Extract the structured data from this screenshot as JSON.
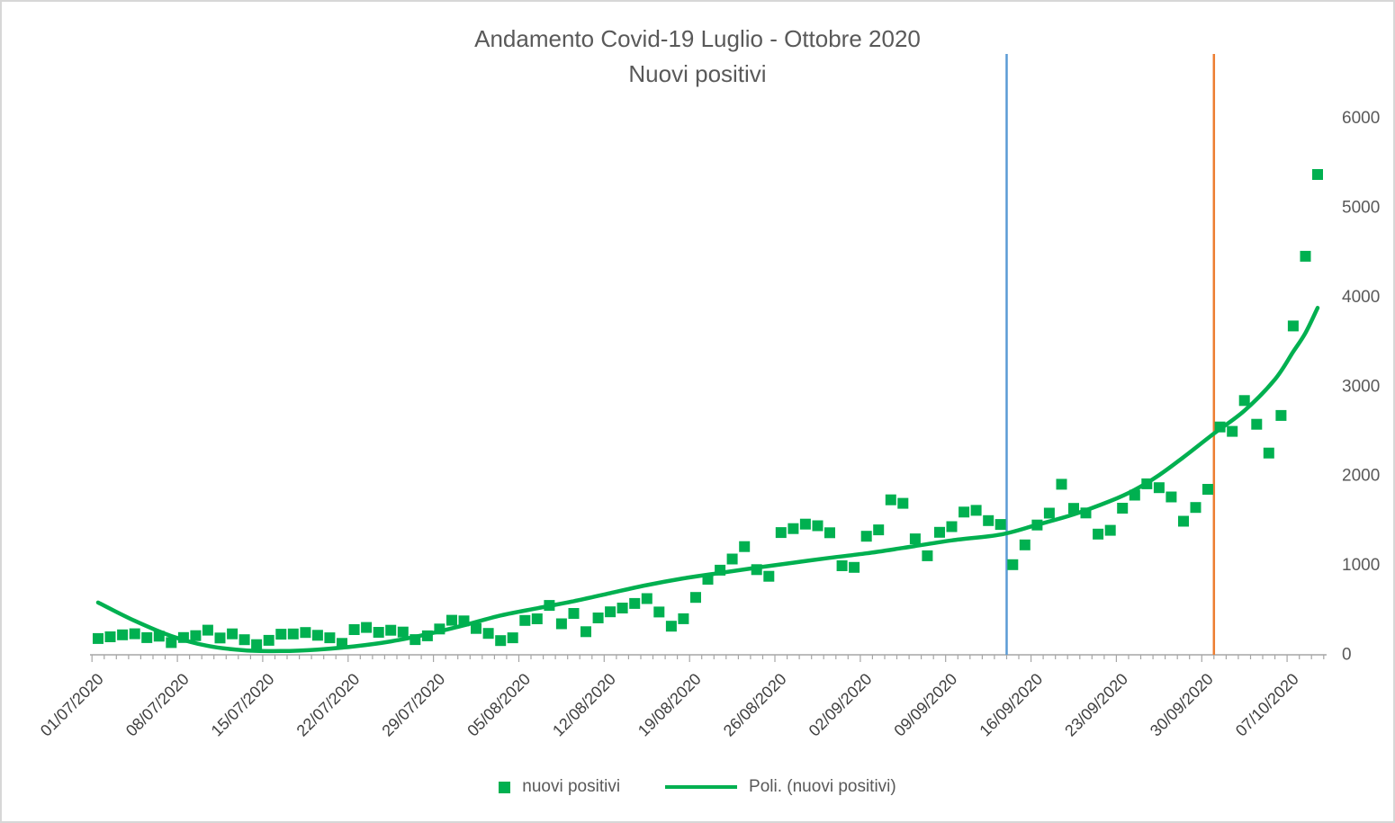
{
  "title": {
    "line1": "Andamento Covid-19 Luglio - Ottobre 2020",
    "line2": "Nuovi positivi"
  },
  "colors": {
    "series": "#00B050",
    "trend": "#00B050",
    "axis": "#A6A6A6",
    "y_label_text": "#595959",
    "x_label_text": "#404040",
    "title_text": "#595959",
    "legend_text": "#595959",
    "vline_blue": "#5B9BD5",
    "vline_orange": "#ED7D31"
  },
  "legend": {
    "items": [
      {
        "label": "nuovi positivi",
        "swatch": "square"
      },
      {
        "label": "Poli. (nuovi positivi)",
        "swatch": "line"
      }
    ]
  },
  "y_axis": {
    "side": "right",
    "ticks": [
      0,
      1000,
      2000,
      3000,
      4000,
      5000,
      6000
    ]
  },
  "x_axis": {
    "label_rotation_deg": -45,
    "tick_labels": [
      "01/07/2020",
      "08/07/2020",
      "15/07/2020",
      "22/07/2020",
      "29/07/2020",
      "05/08/2020",
      "12/08/2020",
      "19/08/2020",
      "26/08/2020",
      "02/09/2020",
      "09/09/2020",
      "16/09/2020",
      "23/09/2020",
      "30/09/2020",
      "07/10/2020"
    ]
  },
  "chart_data": {
    "type": "scatter",
    "title": "Andamento Covid-19 Luglio - Ottobre 2020 — Nuovi positivi",
    "xlabel": "",
    "ylabel": "",
    "ylim": [
      0,
      6000
    ],
    "grid": false,
    "legend_position": "bottom",
    "x_start_date": "01/07/2020",
    "x_end_date": "09/10/2020",
    "x_frequency": "daily",
    "series": [
      {
        "name": "nuovi positivi",
        "marker": "square",
        "values": [
          182,
          201,
          223,
          235,
          192,
          208,
          137,
          193,
          214,
          276,
          188,
          234,
          169,
          114,
          162,
          230,
          233,
          249,
          218,
          190,
          128,
          282,
          306,
          252,
          275,
          255,
          170,
          212,
          289,
          386,
          379,
          295,
          239,
          159,
          190,
          384,
          402,
          552,
          347,
          463,
          259,
          412,
          481,
          523,
          574,
          629,
          479,
          320,
          403,
          642,
          845,
          947,
          1071,
          1210,
          953,
          878,
          1367,
          1411,
          1462,
          1444,
          1365,
          996,
          978,
          1326,
          1397,
          1733,
          1694,
          1297,
          1108,
          1370,
          1434,
          1597,
          1616,
          1501,
          1458,
          1008,
          1229,
          1452,
          1585,
          1907,
          1638,
          1587,
          1350,
          1392,
          1640,
          1786,
          1912,
          1869,
          1766,
          1494,
          1648,
          1851,
          2548,
          2499,
          2844,
          2578,
          2257,
          2677,
          3678,
          4458,
          5372
        ]
      }
    ],
    "trendline": {
      "name": "Poli. (nuovi positivi)",
      "type": "polynomial",
      "samples_day_value": [
        [
          0,
          585
        ],
        [
          3,
          380
        ],
        [
          6,
          210
        ],
        [
          9,
          100
        ],
        [
          12,
          50
        ],
        [
          15,
          42
        ],
        [
          18,
          58
        ],
        [
          21,
          95
        ],
        [
          24,
          150
        ],
        [
          27,
          230
        ],
        [
          30,
          330
        ],
        [
          33,
          440
        ],
        [
          36,
          520
        ],
        [
          39,
          600
        ],
        [
          42,
          690
        ],
        [
          45,
          780
        ],
        [
          48,
          855
        ],
        [
          51,
          915
        ],
        [
          54,
          975
        ],
        [
          57,
          1030
        ],
        [
          60,
          1085
        ],
        [
          63,
          1135
        ],
        [
          66,
          1195
        ],
        [
          70,
          1280
        ],
        [
          74,
          1345
        ],
        [
          77,
          1455
        ],
        [
          80,
          1570
        ],
        [
          83,
          1720
        ],
        [
          85,
          1845
        ],
        [
          87,
          2010
        ],
        [
          89,
          2210
        ],
        [
          91.5,
          2475
        ],
        [
          94,
          2730
        ],
        [
          96.5,
          3080
        ],
        [
          98,
          3390
        ],
        [
          99,
          3600
        ],
        [
          100,
          3880
        ]
      ]
    },
    "vertical_lines": [
      {
        "id": "blue-vertical-line",
        "date": "14/09/2020",
        "day_index": 74.5,
        "color": "#5B9BD5"
      },
      {
        "id": "orange-vertical-line",
        "date": "01/10/2020",
        "day_index": 91.5,
        "color": "#ED7D31"
      }
    ]
  }
}
